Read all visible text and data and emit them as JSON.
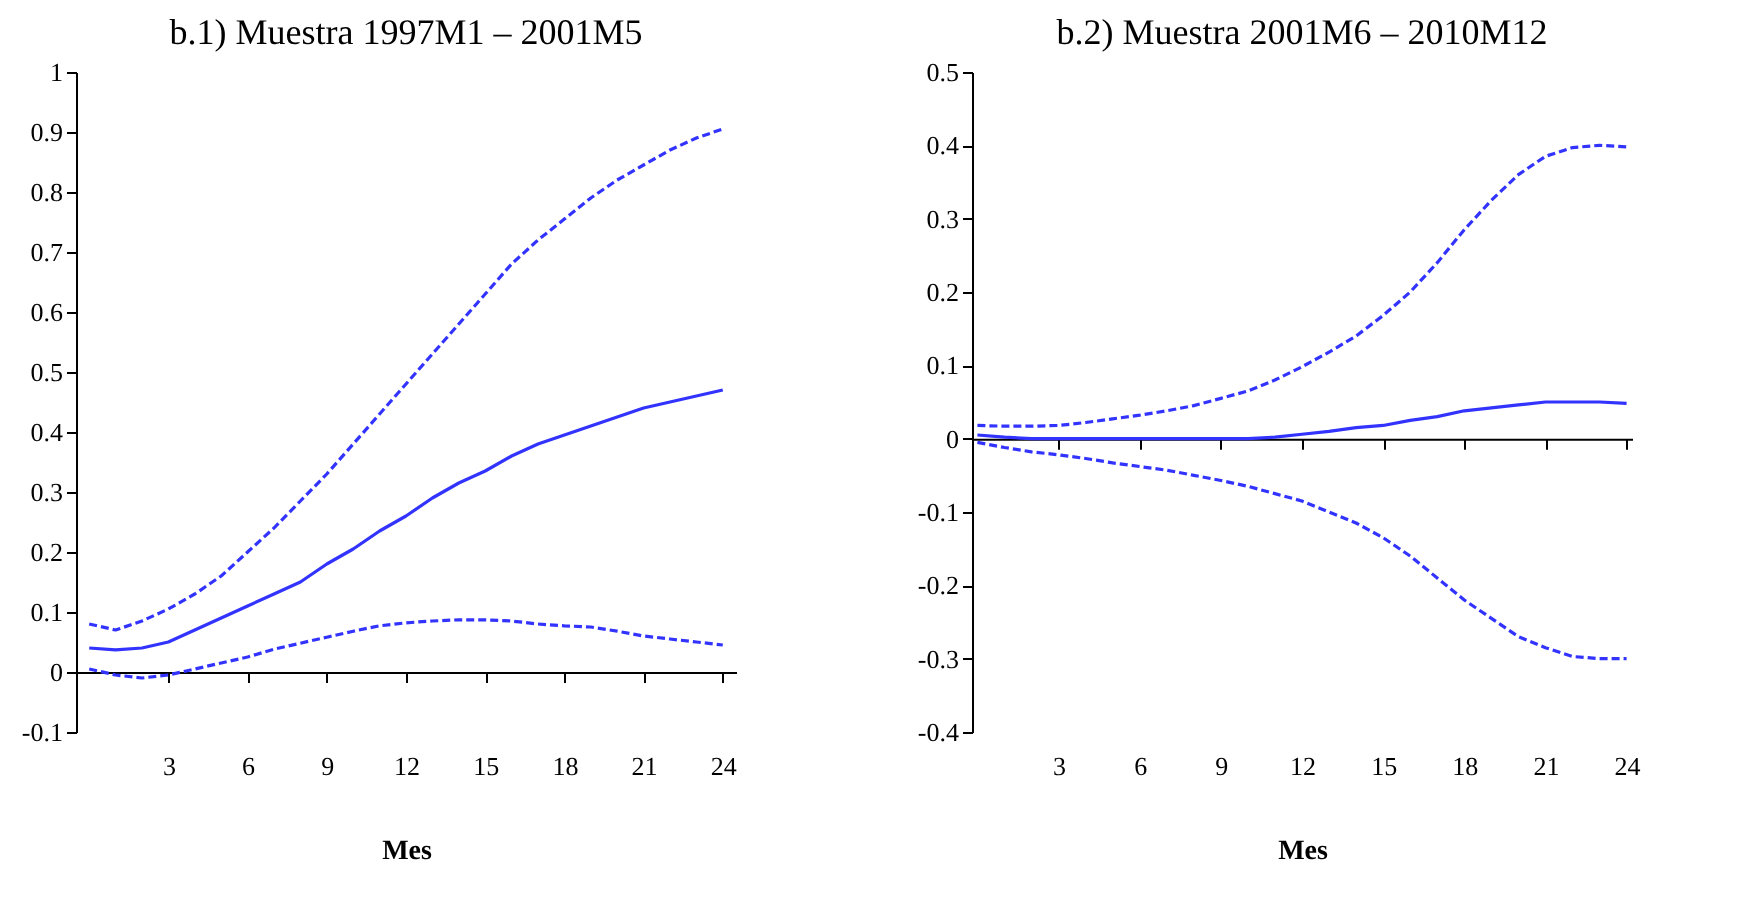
{
  "chart_data": [
    {
      "type": "line",
      "title": "b.1) Muestra 1997M1 – 2001M5",
      "xlabel": "Mes",
      "x": [
        0,
        1,
        2,
        3,
        4,
        5,
        6,
        7,
        8,
        9,
        10,
        11,
        12,
        13,
        14,
        15,
        16,
        17,
        18,
        19,
        20,
        21,
        22,
        23,
        24
      ],
      "xlim": [
        -0.5,
        24.5
      ],
      "xticks": [
        3,
        6,
        9,
        12,
        15,
        18,
        21,
        24
      ],
      "ylim": [
        -0.1,
        1
      ],
      "yticks": [
        -0.1,
        0,
        0.1,
        0.2,
        0.3,
        0.4,
        0.5,
        0.6,
        0.7,
        0.8,
        0.9,
        1
      ],
      "series": [
        {
          "color": "#3333ff",
          "line_style": "dashed",
          "values": [
            0.08,
            0.07,
            0.085,
            0.105,
            0.13,
            0.16,
            0.2,
            0.24,
            0.285,
            0.33,
            0.38,
            0.43,
            0.48,
            0.53,
            0.58,
            0.63,
            0.68,
            0.72,
            0.755,
            0.79,
            0.82,
            0.845,
            0.87,
            0.89,
            0.905
          ]
        },
        {
          "color": "#3333ff",
          "line_style": "solid",
          "values": [
            0.04,
            0.037,
            0.04,
            0.05,
            0.07,
            0.09,
            0.11,
            0.13,
            0.15,
            0.18,
            0.205,
            0.235,
            0.26,
            0.29,
            0.315,
            0.335,
            0.36,
            0.38,
            0.395,
            0.41,
            0.425,
            0.44,
            0.45,
            0.46,
            0.47
          ]
        },
        {
          "color": "#3333ff",
          "line_style": "dashed",
          "values": [
            0.005,
            -0.005,
            -0.01,
            -0.005,
            0.005,
            0.015,
            0.025,
            0.038,
            0.048,
            0.058,
            0.068,
            0.077,
            0.082,
            0.085,
            0.087,
            0.087,
            0.085,
            0.08,
            0.077,
            0.075,
            0.068,
            0.06,
            0.055,
            0.05,
            0.045
          ]
        }
      ]
    },
    {
      "type": "line",
      "title": "b.2) Muestra 2001M6 – 2010M12",
      "xlabel": "Mes",
      "x": [
        0,
        1,
        2,
        3,
        4,
        5,
        6,
        7,
        8,
        9,
        10,
        11,
        12,
        13,
        14,
        15,
        16,
        17,
        18,
        19,
        20,
        21,
        22,
        23,
        24
      ],
      "xlim": [
        -0.2,
        24.2
      ],
      "xticks": [
        3,
        6,
        9,
        12,
        15,
        18,
        21,
        24
      ],
      "ylim": [
        -0.4,
        0.5
      ],
      "yticks": [
        -0.4,
        -0.3,
        -0.2,
        -0.1,
        0,
        0.1,
        0.2,
        0.3,
        0.4,
        0.5
      ],
      "series": [
        {
          "color": "#3333ff",
          "line_style": "dashed",
          "values": [
            0.018,
            0.017,
            0.017,
            0.018,
            0.022,
            0.027,
            0.032,
            0.038,
            0.045,
            0.055,
            0.065,
            0.08,
            0.098,
            0.118,
            0.14,
            0.168,
            0.2,
            0.24,
            0.285,
            0.325,
            0.36,
            0.385,
            0.397,
            0.4,
            0.398
          ]
        },
        {
          "color": "#3333ff",
          "line_style": "solid",
          "values": [
            0.005,
            0.002,
            0,
            0,
            0,
            0,
            0,
            0,
            0,
            0,
            0,
            0.002,
            0.006,
            0.01,
            0.015,
            0.018,
            0.025,
            0.03,
            0.038,
            0.042,
            0.046,
            0.05,
            0.05,
            0.05,
            0.048
          ]
        },
        {
          "color": "#3333ff",
          "line_style": "dashed",
          "values": [
            -0.005,
            -0.012,
            -0.018,
            -0.022,
            -0.027,
            -0.033,
            -0.038,
            -0.043,
            -0.05,
            -0.057,
            -0.065,
            -0.075,
            -0.085,
            -0.1,
            -0.115,
            -0.135,
            -0.16,
            -0.19,
            -0.22,
            -0.245,
            -0.27,
            -0.285,
            -0.297,
            -0.3,
            -0.3
          ]
        }
      ]
    }
  ]
}
